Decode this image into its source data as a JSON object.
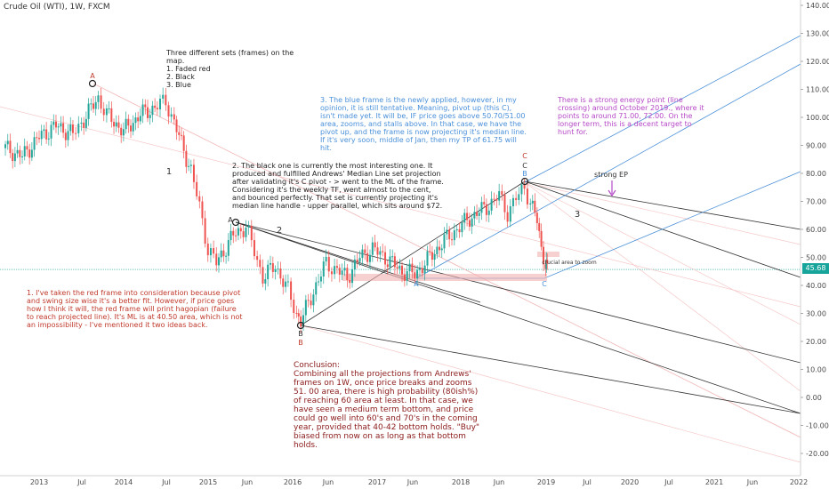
{
  "title": "Crude Oil (WTI), 1W, FXCM",
  "chart_data": {
    "type": "candlestick",
    "yticks": [
      "140.00",
      "130.00",
      "120.00",
      "110.00",
      "100.00",
      "90.00",
      "80.00",
      "70.00",
      "60.00",
      "50.00",
      "40.00",
      "30.00",
      "20.00",
      "10.00",
      "0.00",
      "-10.00",
      "-20.00"
    ],
    "ylim": [
      -24,
      142
    ],
    "xticks": [
      "2013",
      "Jul",
      "2014",
      "Jul",
      "2015",
      "Jun",
      "2016",
      "Jun",
      "2017",
      "Jun",
      "2018",
      "Jun",
      "2019",
      "Jul",
      "2020",
      "Jul",
      "2021",
      "Jun",
      "2022"
    ],
    "last_price": "45.68",
    "price_path": [
      [
        2012.6,
        89
      ],
      [
        2012.8,
        86
      ],
      [
        2013.0,
        93
      ],
      [
        2013.2,
        97
      ],
      [
        2013.4,
        94
      ],
      [
        2013.5,
        98
      ],
      [
        2013.7,
        107
      ],
      [
        2013.8,
        101
      ],
      [
        2014.0,
        95
      ],
      [
        2014.2,
        101
      ],
      [
        2014.4,
        104
      ],
      [
        2014.5,
        106
      ],
      [
        2014.6,
        98
      ],
      [
        2014.8,
        81
      ],
      [
        2014.9,
        68
      ],
      [
        2015.0,
        53
      ],
      [
        2015.1,
        48
      ],
      [
        2015.3,
        58
      ],
      [
        2015.45,
        61
      ],
      [
        2015.55,
        52
      ],
      [
        2015.65,
        43
      ],
      [
        2015.8,
        47
      ],
      [
        2015.95,
        38
      ],
      [
        2016.05,
        30
      ],
      [
        2016.1,
        27
      ],
      [
        2016.25,
        38
      ],
      [
        2016.4,
        48
      ],
      [
        2016.5,
        46
      ],
      [
        2016.65,
        43
      ],
      [
        2016.8,
        50
      ],
      [
        2016.95,
        53
      ],
      [
        2017.1,
        50
      ],
      [
        2017.3,
        45
      ],
      [
        2017.45,
        44
      ],
      [
        2017.6,
        49
      ],
      [
        2017.8,
        56
      ],
      [
        2017.95,
        60
      ],
      [
        2018.1,
        64
      ],
      [
        2018.3,
        68
      ],
      [
        2018.45,
        72
      ],
      [
        2018.55,
        66
      ],
      [
        2018.65,
        71
      ],
      [
        2018.75,
        75
      ],
      [
        2018.82,
        70
      ],
      [
        2018.9,
        63
      ],
      [
        2018.95,
        53
      ],
      [
        2019.0,
        48
      ],
      [
        2019.02,
        45.68
      ]
    ],
    "labels": {
      "a_top": "A",
      "one": "1",
      "two": "2",
      "three": "3",
      "a_mid": "A",
      "b1": "B",
      "b2": "B",
      "c1": "C",
      "c2": "C",
      "c_blue_top": "B",
      "a_blue": "A",
      "c_blue": "C",
      "strong_ep": "strong EP",
      "crucial": "crucial area to zoom"
    }
  },
  "notes": {
    "intro": "Three different sets (frames) on the map.\n1. Faded red\n2. Black\n3. Blue",
    "red": "1. I've taken the red frame into consideration because pivot and swing size wise it's a better fit. However, if price goes how I think it will, the red frame will print hagopian (failure to reach projected line). It's ML is at 40.50 area, which is not an impossibility - I've mentioned it two ideas back.",
    "black": "2. The black one is currently the most interesting one. It produced and fulfilled Andrews' Median Line set projection after validating it's C pivot - > went to the ML of the frame. Considering it's the weekly TF, went almost to the cent, and bounced perfectly. That set is currently projecting it's median line handle - upper parallel, which sits around $72.",
    "blue": "3. The blue frame is the newly applied, however, in my opinion, it is still tentative. Meaning, pivot up (this C), isn't made yet. It will be, IF price goes above 50.70/51.00 area, zooms, and stalls above. In that case, we have the pivot up, and the frame is now projecting it's median line. If it's very soon, middle of Jan, then my TP of 61.75 will hit.",
    "purple": "There is a strong energy point (line crossing) around October 2019., where it points to around 71.00, 72.00. On the longer term, this is a decent target to hunt for.",
    "conclusion": "Conclusion:\nCombining all the projections from Andrews' frames on 1W, once price breaks and zooms 51. 00 area, there is high probability (80ish%) of reaching 60 area at least. In that case, we have seen a medium term bottom, and price could go well into 60's and 70's in the coming year, provided that 40-42 bottom holds. \"Buy\" biased from now on as long as that bottom holds."
  },
  "colors": {
    "red_note": "#c0392b",
    "blue_note": "#4a90d9",
    "purple_note": "#b548c6",
    "conclusion": "#8b1a1a",
    "up": "#26a69a",
    "down": "#ef5350"
  }
}
